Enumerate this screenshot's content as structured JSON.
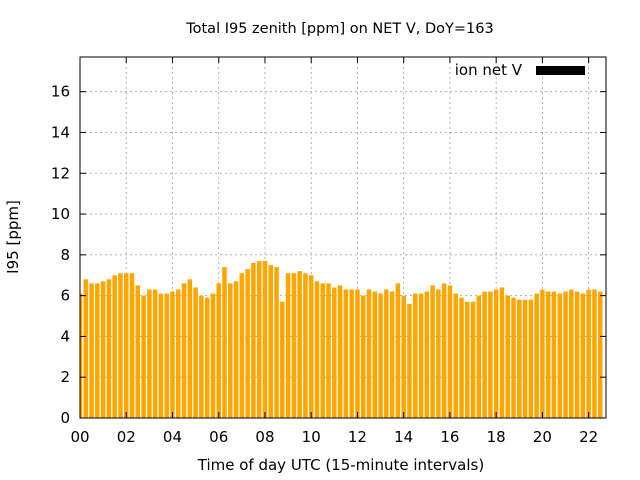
{
  "chart_data": {
    "type": "bar",
    "title": "Total I95 zenith [ppm] on NET V, DoY=163",
    "xlabel": "Time of day UTC (15-minute intervals)",
    "ylabel": "I95 [ppm]",
    "ylim": [
      0,
      17.7
    ],
    "xlim": [
      0,
      22.75
    ],
    "grid": true,
    "legend_position": "top-right",
    "x_ticks": [
      "00",
      "02",
      "04",
      "06",
      "08",
      "10",
      "12",
      "14",
      "16",
      "18",
      "20",
      "22"
    ],
    "y_ticks": [
      "0",
      "2",
      "4",
      "6",
      "8",
      "10",
      "12",
      "14",
      "16"
    ],
    "bar_interval_hours": 0.25,
    "series": [
      {
        "name": "ion net V",
        "color": "#ffa500",
        "values": [
          6.1,
          6.8,
          6.6,
          6.6,
          6.7,
          6.8,
          7.0,
          7.1,
          7.1,
          7.1,
          6.5,
          6.0,
          6.3,
          6.3,
          6.1,
          6.1,
          6.2,
          6.3,
          6.6,
          6.8,
          6.4,
          6.0,
          5.9,
          6.1,
          6.6,
          7.4,
          6.6,
          6.7,
          7.1,
          7.3,
          7.6,
          7.7,
          7.7,
          7.5,
          7.4,
          5.7,
          7.1,
          7.1,
          7.2,
          7.1,
          7.0,
          6.7,
          6.6,
          6.6,
          6.4,
          6.5,
          6.3,
          6.3,
          6.3,
          6.0,
          6.3,
          6.2,
          6.1,
          6.3,
          6.2,
          6.6,
          6.0,
          5.6,
          6.1,
          6.1,
          6.2,
          6.5,
          6.3,
          6.6,
          6.5,
          6.1,
          5.9,
          5.7,
          5.7,
          6.0,
          6.2,
          6.2,
          6.3,
          6.4,
          6.0,
          5.9,
          5.8,
          5.8,
          5.8,
          6.1,
          6.3,
          6.2,
          6.2,
          6.1,
          6.2,
          6.3,
          6.2,
          6.1,
          6.3,
          6.3,
          6.2
        ]
      }
    ]
  }
}
